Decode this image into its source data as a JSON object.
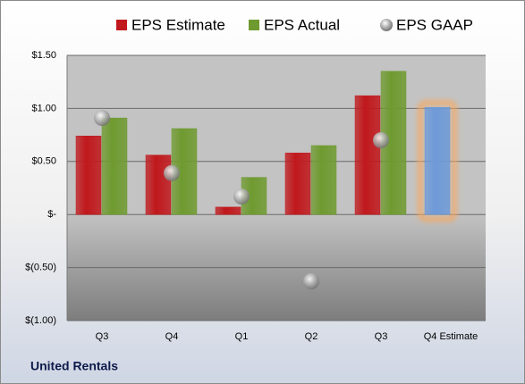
{
  "chart_data": {
    "type": "bar",
    "title": "United Rentals",
    "categories": [
      "Q3",
      "Q4",
      "Q1",
      "Q2",
      "Q3",
      "Q4 Estimate"
    ],
    "series": [
      {
        "name": "EPS Estimate",
        "color": "#c0181c",
        "colors": [
          "#c0181c",
          "#c0181c",
          "#c0181c",
          "#c0181c",
          "#c0181c",
          "#6e9ad8"
        ],
        "glow": [
          null,
          null,
          null,
          null,
          null,
          "#f7a960"
        ],
        "values": [
          0.74,
          0.56,
          0.07,
          0.58,
          1.12,
          1.01
        ]
      },
      {
        "name": "EPS Actual",
        "color": "#6f9a30",
        "values": [
          0.91,
          0.81,
          0.35,
          0.65,
          1.35,
          null
        ]
      },
      {
        "name": "EPS GAAP",
        "color": "#9a9a9a",
        "marker": "circle",
        "values": [
          0.91,
          0.39,
          0.17,
          -0.63,
          0.7,
          null
        ]
      }
    ],
    "ylim": [
      -1.0,
      1.5
    ],
    "yticks": [
      {
        "value": -1.0,
        "label": "$(1.00)"
      },
      {
        "value": -0.5,
        "label": "$(0.50)"
      },
      {
        "value": 0,
        "label": "$-"
      },
      {
        "value": 0.5,
        "label": "$0.50"
      },
      {
        "value": 1.0,
        "label": "$1.00"
      },
      {
        "value": 1.5,
        "label": "$1.50"
      }
    ],
    "grid": true
  }
}
